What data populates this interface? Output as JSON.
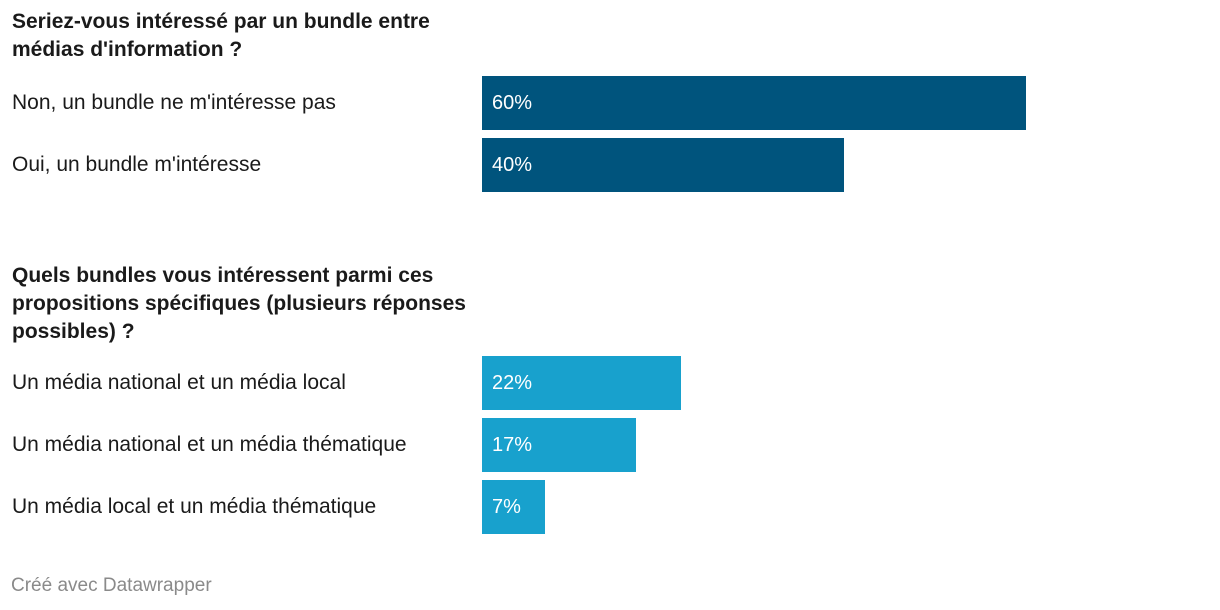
{
  "chart_data": {
    "type": "bar",
    "orientation": "horizontal",
    "xlim": [
      0,
      100
    ],
    "unit": "%",
    "groups": [
      {
        "title": "Seriez-vous intéressé par un bundle entre médias d'information ?",
        "color": "#00547d",
        "categories": [
          "Non, un bundle ne m'intéresse pas",
          "Oui, un bundle m'intéresse"
        ],
        "values": [
          60,
          40
        ],
        "value_labels": [
          "60%",
          "40%"
        ]
      },
      {
        "title": "Quels bundles vous intéressent parmi ces propositions spécifiques (plusieurs réponses possibles) ?",
        "color": "#18a1cd",
        "categories": [
          "Un média national et un média local",
          "Un média national et un média thématique",
          "Un média local et un média thématique"
        ],
        "values": [
          22,
          17,
          7
        ],
        "value_labels": [
          "22%",
          "17%",
          "7%"
        ]
      }
    ]
  },
  "footer": "Créé avec Datawrapper"
}
